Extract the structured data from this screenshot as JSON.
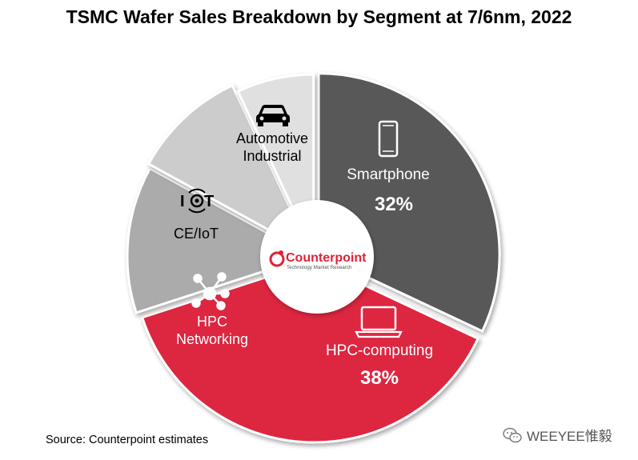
{
  "title": "TSMC Wafer Sales Breakdown by Segment at 7/6nm, 2022",
  "source": "Source: Counterpoint estimates",
  "watermark": "WEEYEE惟毅",
  "center_logo": {
    "name": "Counterpoint",
    "tagline": "Technology Market Research",
    "brand_color": "#e02236"
  },
  "chart_data": {
    "type": "pie",
    "variant": "donut",
    "title": "TSMC Wafer Sales Breakdown by Segment at 7/6nm, 2022",
    "slices": [
      {
        "label": "Smartphone",
        "value": 32,
        "value_label": "32%",
        "color": "#595959",
        "text_color": "#ffffff",
        "icon": "smartphone-icon"
      },
      {
        "label": "HPC-computing",
        "value": 38,
        "value_label": "38%",
        "color": "#dd2840",
        "text_color": "#ffffff",
        "icon": "laptop-icon"
      },
      {
        "label": "HPC Networking",
        "label_lines": [
          "HPC",
          "Networking"
        ],
        "value": 13,
        "color": "#ababab",
        "text_color": "#ffffff",
        "icon": "network-icon"
      },
      {
        "label": "CE/IoT",
        "label_lines": [
          "CE/IoT"
        ],
        "value": 10,
        "color": "#cccccc",
        "text_color": "#000000",
        "icon": "iot-icon"
      },
      {
        "label": "Automotive Industrial",
        "label_lines": [
          "Automotive",
          "Industrial"
        ],
        "value": 7,
        "color": "#e0e0e0",
        "text_color": "#000000",
        "icon": "car-icon"
      }
    ]
  }
}
